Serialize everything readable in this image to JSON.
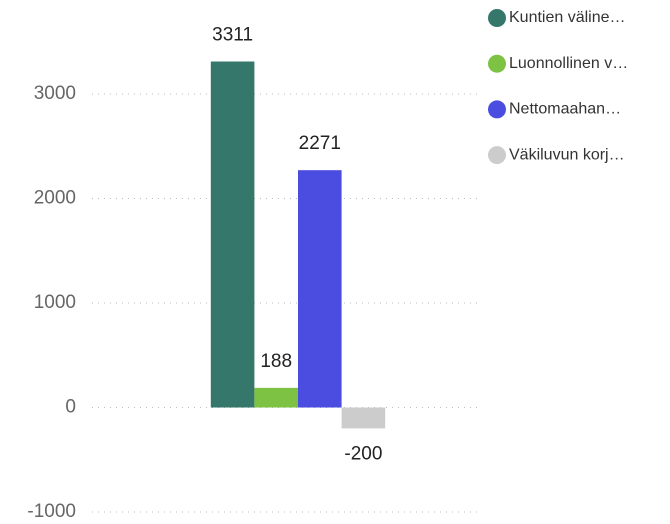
{
  "chart_data": {
    "type": "bar",
    "categories": [
      null
    ],
    "series": [
      {
        "name": "Kuntien väline…",
        "color": "#35776a",
        "values": [
          3311
        ]
      },
      {
        "name": "Luonnollinen v…",
        "color": "#7dc242",
        "values": [
          188
        ]
      },
      {
        "name": "Nettomaahan…",
        "color": "#4b4de0",
        "values": [
          2271
        ]
      },
      {
        "name": "Väkiluvun korj…",
        "color": "#cccccc",
        "values": [
          -200
        ]
      }
    ],
    "ylim": [
      -1000,
      3000
    ],
    "yticks": [
      -1000,
      0,
      1000,
      2000,
      3000
    ],
    "grid": true,
    "legend": "right"
  }
}
